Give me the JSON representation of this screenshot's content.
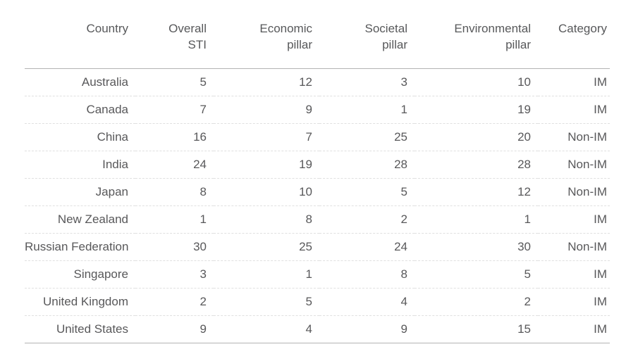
{
  "chart_data": {
    "type": "table",
    "title": "",
    "columns": [
      "Country",
      "Overall STI",
      "Economic pillar",
      "Societal pillar",
      "Environmental pillar",
      "Category"
    ],
    "header_lines": [
      [
        "Country"
      ],
      [
        "Overall",
        "STI"
      ],
      [
        "Economic",
        "pillar"
      ],
      [
        "Societal",
        "pillar"
      ],
      [
        "Environmental",
        "pillar"
      ],
      [
        "Category"
      ]
    ],
    "rows": [
      [
        "Australia",
        5,
        12,
        3,
        10,
        "IM"
      ],
      [
        "Canada",
        7,
        9,
        1,
        19,
        "IM"
      ],
      [
        "China",
        16,
        7,
        25,
        20,
        "Non-IM"
      ],
      [
        "India",
        24,
        19,
        28,
        28,
        "Non-IM"
      ],
      [
        "Japan",
        8,
        10,
        5,
        12,
        "Non-IM"
      ],
      [
        "New Zealand",
        1,
        8,
        2,
        1,
        "IM"
      ],
      [
        "Russian Federation",
        30,
        25,
        24,
        30,
        "Non-IM"
      ],
      [
        "Singapore",
        3,
        1,
        8,
        5,
        "IM"
      ],
      [
        "United Kingdom",
        2,
        5,
        4,
        2,
        "IM"
      ],
      [
        "United States",
        9,
        4,
        9,
        15,
        "IM"
      ]
    ],
    "layout": {
      "cell_alignment": "right",
      "header_separator": "solid",
      "row_separator": "dashed",
      "grid_vertical": false,
      "legend": "none"
    },
    "colors": {
      "background": "#ffffff",
      "text": "#58585a",
      "solid_border": "#b3b3b3",
      "dashed_border": "#e0e0e0"
    }
  }
}
